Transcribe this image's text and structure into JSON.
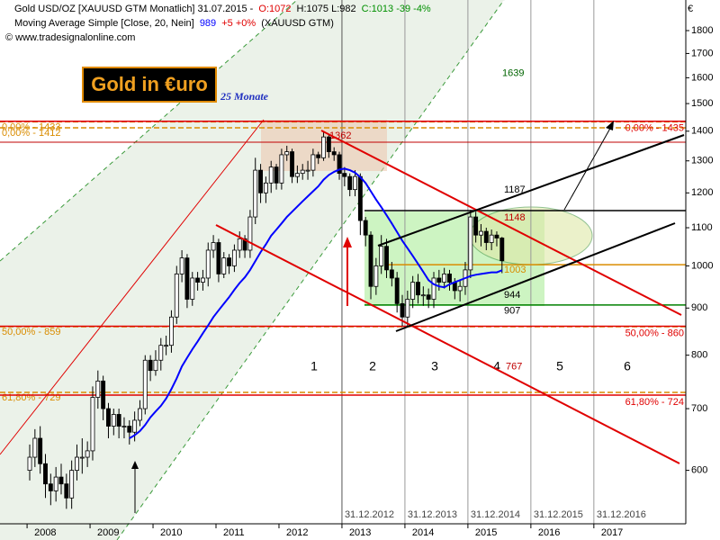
{
  "chart_data": {
    "type": "candlestick",
    "header": {
      "line1": "Gold USD/OZ [XAUUSD GTM  Monatlich] 31.07.2015 -",
      "ohlc_o": "O:1072",
      "ohlc_hl": "H:1075 L:982",
      "ohlc_c": "C:1013 -39 -4%",
      "line2": "Moving Average Simple [Close, 20, Nein]",
      "ma_last": "989",
      "ma_change": "+5 +0%",
      "ma_symbol": "(XAUUSD GTM)",
      "copyright": "© www.tradesignalonline.com"
    },
    "title": "Gold in €uro",
    "subtitle": "25 Monate",
    "y_unit": "€",
    "open": [
      600,
      620,
      650,
      610,
      580,
      570,
      590,
      580,
      560,
      600,
      620,
      620,
      630,
      720,
      750,
      700,
      670,
      690,
      670,
      670,
      660,
      680,
      700,
      790,
      770,
      790,
      820,
      820,
      880,
      980,
      1020,
      920,
      970,
      960,
      970,
      1040,
      1060,
      980,
      1020,
      1000,
      1040,
      1070,
      1040,
      1130,
      1270,
      1200,
      1230,
      1280,
      1230,
      1320,
      1330,
      1250,
      1260,
      1270,
      1270,
      1320,
      1310,
      1380,
      1330,
      1320,
      1260,
      1250,
      1210,
      1250,
      1120,
      1080,
      950,
      1000,
      1050,
      990,
      970,
      910,
      880,
      920,
      960,
      930,
      930,
      920,
      970,
      960,
      980,
      960,
      940,
      950,
      990,
      1130,
      1080,
      1090,
      1060,
      1080,
      1072
    ],
    "high": [
      640,
      665,
      670,
      625,
      595,
      605,
      610,
      595,
      615,
      640,
      650,
      645,
      740,
      770,
      760,
      710,
      700,
      700,
      685,
      680,
      695,
      715,
      800,
      800,
      810,
      835,
      840,
      895,
      1000,
      1040,
      1030,
      985,
      985,
      990,
      1060,
      1080,
      1070,
      1035,
      1030,
      1055,
      1090,
      1080,
      1150,
      1310,
      1290,
      1250,
      1300,
      1290,
      1340,
      1350,
      1340,
      1285,
      1290,
      1300,
      1340,
      1330,
      1400,
      1390,
      1345,
      1330,
      1280,
      1260,
      1270,
      1260,
      1130,
      1090,
      1020,
      1080,
      1070,
      1010,
      985,
      930,
      940,
      975,
      980,
      950,
      945,
      985,
      990,
      995,
      990,
      970,
      965,
      1010,
      1150,
      1145,
      1110,
      1100,
      1095,
      1090,
      1075
    ],
    "low": [
      585,
      605,
      595,
      560,
      550,
      555,
      565,
      545,
      545,
      585,
      595,
      605,
      615,
      700,
      680,
      650,
      655,
      650,
      650,
      640,
      645,
      670,
      690,
      750,
      760,
      770,
      800,
      805,
      865,
      960,
      900,
      905,
      940,
      940,
      950,
      1020,
      960,
      970,
      980,
      985,
      1020,
      1020,
      1020,
      1110,
      1170,
      1170,
      1200,
      1210,
      1210,
      1300,
      1230,
      1230,
      1240,
      1240,
      1250,
      1290,
      1300,
      1310,
      1300,
      1240,
      1220,
      1190,
      1190,
      1080,
      1050,
      920,
      930,
      980,
      970,
      950,
      890,
      860,
      860,
      900,
      910,
      905,
      900,
      900,
      940,
      945,
      940,
      920,
      915,
      930,
      970,
      1060,
      1050,
      1040,
      1040,
      1050,
      982
    ],
    "close": [
      620,
      650,
      610,
      580,
      570,
      590,
      580,
      560,
      600,
      620,
      620,
      630,
      720,
      750,
      700,
      670,
      690,
      670,
      670,
      660,
      680,
      700,
      790,
      770,
      790,
      820,
      820,
      880,
      980,
      1020,
      920,
      970,
      960,
      970,
      1040,
      1060,
      980,
      1020,
      1000,
      1040,
      1070,
      1040,
      1130,
      1270,
      1200,
      1230,
      1280,
      1230,
      1320,
      1330,
      1250,
      1260,
      1270,
      1270,
      1320,
      1310,
      1380,
      1330,
      1320,
      1260,
      1250,
      1210,
      1250,
      1120,
      1080,
      950,
      1000,
      1050,
      990,
      970,
      910,
      880,
      920,
      960,
      930,
      930,
      920,
      970,
      960,
      980,
      960,
      940,
      950,
      990,
      1130,
      1080,
      1090,
      1060,
      1080,
      1072,
      1013
    ],
    "up_color": "#ffffff",
    "down_color": "#000000",
    "moving_average": {
      "color": "#0000ff",
      "values": [
        null,
        null,
        null,
        null,
        null,
        null,
        null,
        null,
        null,
        null,
        null,
        null,
        null,
        null,
        null,
        null,
        null,
        null,
        null,
        650,
        655,
        662,
        672,
        685,
        695,
        705,
        718,
        735,
        755,
        778,
        795,
        812,
        828,
        845,
        862,
        880,
        895,
        910,
        925,
        942,
        958,
        972,
        990,
        1012,
        1035,
        1055,
        1078,
        1095,
        1112,
        1130,
        1145,
        1160,
        1175,
        1190,
        1205,
        1220,
        1240,
        1255,
        1265,
        1272,
        1275,
        1270,
        1262,
        1248,
        1230,
        1205,
        1180,
        1158,
        1135,
        1112,
        1088,
        1065,
        1045,
        1025,
        1005,
        985,
        965,
        955,
        950,
        948,
        955,
        960,
        965,
        970,
        975,
        978,
        980,
        982,
        984,
        984,
        989
      ]
    },
    "log_y": true,
    "ylim": [
      525,
      1943
    ],
    "yticks": [
      600,
      700,
      800,
      900,
      1000,
      1100,
      1200,
      1300,
      1400,
      1500,
      1600,
      1700,
      1800
    ],
    "xlim": [
      2007.57,
      2018.46
    ],
    "xticks": [
      2008,
      2009,
      2010,
      2011,
      2012,
      2013,
      2014,
      2015,
      2016,
      2017
    ],
    "date_lines": [
      {
        "value": 2013,
        "label": "31.12.2012"
      },
      {
        "value": 2014,
        "label": "31.12.2013"
      },
      {
        "value": 2015,
        "label": "31.12.2014"
      },
      {
        "value": 2016,
        "label": "31.12.2015"
      },
      {
        "value": 2017,
        "label": "31.12.2016"
      }
    ],
    "fib_left": {
      "color": "#d98c00",
      "levels": [
        {
          "value": 1433,
          "label": "0,00% - 1433"
        },
        {
          "value": 1412,
          "label": "0,00% - 1412"
        },
        {
          "value": 859,
          "label": "50,00% - 859"
        },
        {
          "value": 729,
          "label": "61,80% - 729"
        }
      ]
    },
    "fib_right": {
      "color": "#e00000",
      "levels": [
        {
          "value": 1435,
          "label": "0,00% - 1435"
        },
        {
          "value": 860,
          "label": "50,00% - 860"
        },
        {
          "value": 724,
          "label": "61,80% - 724"
        }
      ]
    },
    "level_notes": [
      {
        "value": 1639,
        "color": "#006400"
      },
      {
        "value": 1362,
        "color": "#c00000"
      },
      {
        "value": 1187,
        "color": "#000000"
      },
      {
        "value": 1148,
        "color": "#c00000"
      },
      {
        "value": 1003,
        "color": "#d98c00"
      },
      {
        "value": 944,
        "color": "#000000"
      },
      {
        "value": 907,
        "color": "#000000"
      },
      {
        "value": 767,
        "color": "#c00000"
      }
    ],
    "phase_labels": [
      "1",
      "2",
      "3",
      "4",
      "5",
      "6"
    ]
  }
}
